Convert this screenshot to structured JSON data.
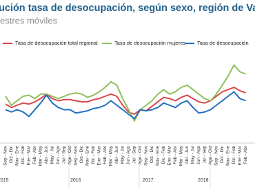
{
  "chart_data": {
    "type": "line",
    "title": "ución tasa de desocupación, según sexo, región de Valpar",
    "subtitle": "estres móviles",
    "categories": [
      "Sep - Nov",
      "Oct - Dic",
      "Nov - Ene",
      "Dic - Feb",
      "Ene - Mar",
      "Feb - Abr",
      "Mar - May",
      "Abr - Jun",
      "May - Jul",
      "Jun - Ago",
      "Jul - Sep",
      "Ago - Oct",
      "Sep - Nov",
      "Oct - Dic",
      "Nov - Ene",
      "Dic - Feb",
      "Ene - Mar",
      "Feb - Abr",
      "Mar - May",
      "Abr - Jun",
      "May - Jul",
      "Jun - Ago",
      "Jul - Sep",
      "Ago - Oct",
      "Sep - Nov",
      "Oct - Dic",
      "Nov - Ene",
      "Dic - Feb",
      "Ene - Mar",
      "Feb - Abr",
      "Mar - May",
      "Abr - Jun",
      "May - Jul",
      "Jun - Ago",
      "Jul - Sep",
      "Ago - Oct",
      "Sep - Nov",
      "Oct - Dic",
      "Nov - Ene",
      "Dic - Feb",
      "Ene - Mar",
      "Feb - Abr"
    ],
    "x_group_labels": [
      "2015",
      "2016",
      "2017",
      "2018"
    ],
    "ylim": [
      3,
      11
    ],
    "series": [
      {
        "name": "Tasa de desocupación total regional",
        "color": "#d9474a",
        "values": [
          6.3,
          6.0,
          6.2,
          6.4,
          6.3,
          6.5,
          6.8,
          7.2,
          6.8,
          6.6,
          6.7,
          6.7,
          6.6,
          6.5,
          6.5,
          6.7,
          6.8,
          7.0,
          7.2,
          7.0,
          6.2,
          5.6,
          5.4,
          5.8,
          5.7,
          6.1,
          6.5,
          6.9,
          6.8,
          6.6,
          6.9,
          7.1,
          6.8,
          6.5,
          6.4,
          6.6,
          7.0,
          7.4,
          7.6,
          7.8,
          7.5,
          7.3
        ]
      },
      {
        "name": "Tasa de desocupación mujeres",
        "color": "#8fbf5a",
        "values": [
          7.0,
          6.2,
          6.6,
          7.0,
          7.1,
          6.8,
          7.2,
          7.2,
          7.0,
          6.8,
          7.0,
          7.2,
          7.3,
          7.2,
          6.9,
          7.1,
          7.4,
          7.8,
          8.3,
          8.0,
          6.8,
          5.8,
          4.8,
          5.8,
          6.2,
          6.6,
          7.2,
          7.6,
          7.2,
          7.4,
          7.8,
          8.0,
          7.6,
          7.2,
          6.8,
          6.6,
          7.2,
          8.0,
          8.8,
          9.8,
          9.2,
          9.0
        ]
      },
      {
        "name": "Tasa de desocupación",
        "color": "#1f6fc0",
        "values": [
          5.8,
          5.6,
          5.8,
          5.6,
          5.2,
          5.8,
          6.4,
          7.1,
          6.4,
          6.0,
          5.8,
          5.8,
          5.5,
          5.6,
          5.7,
          5.9,
          6.0,
          6.2,
          6.6,
          6.2,
          5.8,
          5.4,
          5.0,
          5.8,
          5.7,
          5.8,
          6.0,
          6.4,
          6.2,
          6.0,
          6.4,
          6.6,
          6.0,
          5.5,
          5.6,
          5.8,
          6.2,
          6.6,
          7.0,
          7.4,
          6.8,
          6.6
        ]
      }
    ]
  }
}
